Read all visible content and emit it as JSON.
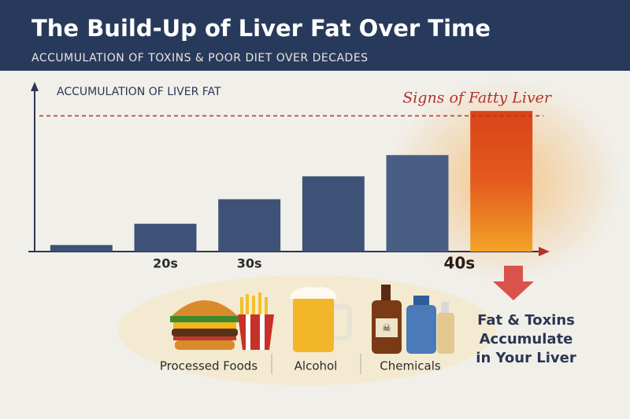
{
  "chart_data": {
    "type": "bar",
    "title": "The Build-Up of Liver Fat Over Time",
    "subtitle": "ACCUMULATION OF TOXINS & POOR DIET OVER DECADES",
    "y_label": "ACCUMULATION OF LIVER FAT",
    "categories": [
      null,
      "20s",
      "30s",
      null,
      "40s",
      null
    ],
    "values": [
      4,
      17,
      32,
      46,
      59,
      86
    ],
    "colors": [
      "#3d5276",
      "#3d5276",
      "#3d5276",
      "#3d5276",
      "#485e84",
      "#e0521f"
    ],
    "ylim": [
      0,
      100
    ],
    "threshold": {
      "value": 83,
      "label": "Signs of Fatty Liver",
      "color": "#b3322a"
    },
    "sources": [
      "Processed Foods",
      "Alcohol",
      "Chemicals"
    ],
    "result": "Fat & Toxins Accumulate in Your Liver"
  }
}
